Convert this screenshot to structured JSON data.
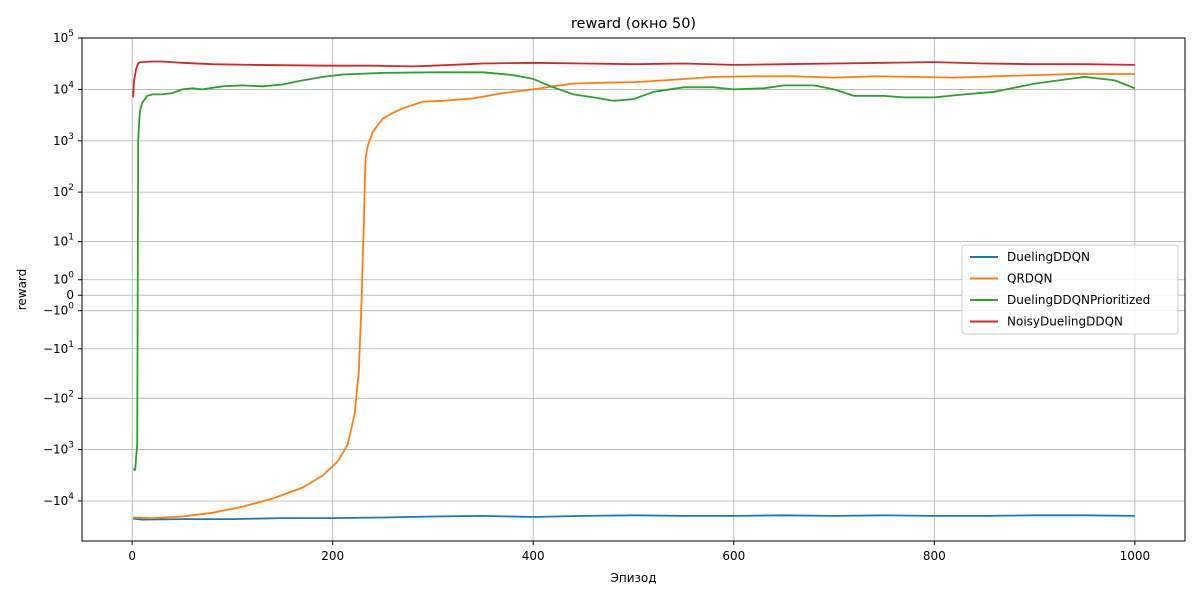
{
  "chart_data": {
    "type": "line",
    "title": "reward (окно 50)",
    "xlabel": "Эпизод",
    "ylabel": "reward",
    "yscale": "symlog",
    "xlim": [
      -50,
      1050
    ],
    "ylim": [
      -60000,
      100000
    ],
    "grid": true,
    "legend_position": "center-right",
    "x_ticks": [
      {
        "value": 0,
        "label": "0"
      },
      {
        "value": 200,
        "label": "200"
      },
      {
        "value": 400,
        "label": "400"
      },
      {
        "value": 600,
        "label": "600"
      },
      {
        "value": 800,
        "label": "800"
      },
      {
        "value": 1000,
        "label": "1000"
      }
    ],
    "y_ticks": [
      {
        "value": 100000,
        "base": "10",
        "exp": "5",
        "sign": ""
      },
      {
        "value": 10000,
        "base": "10",
        "exp": "4",
        "sign": ""
      },
      {
        "value": 1000,
        "base": "10",
        "exp": "3",
        "sign": ""
      },
      {
        "value": 100,
        "base": "10",
        "exp": "2",
        "sign": ""
      },
      {
        "value": 10,
        "base": "10",
        "exp": "1",
        "sign": ""
      },
      {
        "value": 1,
        "base": "10",
        "exp": "0",
        "sign": ""
      },
      {
        "value": 0,
        "base": "0",
        "exp": "",
        "sign": ""
      },
      {
        "value": -1,
        "base": "10",
        "exp": "0",
        "sign": "−"
      },
      {
        "value": -10,
        "base": "10",
        "exp": "1",
        "sign": "−"
      },
      {
        "value": -100,
        "base": "10",
        "exp": "2",
        "sign": "−"
      },
      {
        "value": -1000,
        "base": "10",
        "exp": "3",
        "sign": "−"
      },
      {
        "value": -10000,
        "base": "10",
        "exp": "4",
        "sign": "−"
      }
    ],
    "series": [
      {
        "name": "DuelingDDQN",
        "color": "#1f77b4",
        "x": [
          1,
          10,
          50,
          100,
          150,
          200,
          250,
          300,
          350,
          400,
          450,
          500,
          550,
          600,
          650,
          700,
          750,
          800,
          850,
          900,
          950,
          1000
        ],
        "y": [
          -22000,
          -23000,
          -22500,
          -22500,
          -21500,
          -21500,
          -21000,
          -20000,
          -19500,
          -20500,
          -19500,
          -19000,
          -19500,
          -19500,
          -19000,
          -19500,
          -19000,
          -19500,
          -19500,
          -19000,
          -19000,
          -19500
        ]
      },
      {
        "name": "QRDQN",
        "color": "#ff7f0e",
        "x": [
          1,
          20,
          50,
          80,
          110,
          140,
          170,
          190,
          205,
          215,
          222,
          226,
          229,
          230,
          231,
          232,
          233,
          235,
          240,
          250,
          260,
          270,
          290,
          310,
          340,
          370,
          400,
          420,
          440,
          470,
          500,
          530,
          560,
          580,
          620,
          660,
          700,
          740,
          780,
          820,
          860,
          900,
          940,
          1000
        ],
        "y": [
          -21000,
          -21500,
          -20000,
          -17000,
          -13000,
          -9000,
          -5500,
          -3200,
          -1700,
          -800,
          -200,
          -30,
          0,
          5,
          20,
          150,
          500,
          800,
          1500,
          2700,
          3500,
          4300,
          5800,
          6000,
          6700,
          8500,
          10000,
          11500,
          13000,
          13500,
          13800,
          15000,
          16500,
          17500,
          18000,
          18000,
          17000,
          18000,
          17500,
          17000,
          18000,
          19000,
          20000,
          20000
        ]
      },
      {
        "name": "DuelingDDQNPrioritized",
        "color": "#2ca02c",
        "x": [
          1,
          3,
          5,
          6,
          7,
          8,
          10,
          15,
          20,
          30,
          40,
          50,
          60,
          70,
          90,
          110,
          130,
          150,
          170,
          190,
          210,
          250,
          300,
          350,
          380,
          400,
          420,
          440,
          460,
          480,
          500,
          520,
          550,
          580,
          600,
          630,
          650,
          680,
          700,
          720,
          750,
          770,
          800,
          830,
          860,
          900,
          950,
          980,
          1000
        ],
        "y": [
          -2400,
          -2500,
          -800,
          1000,
          2500,
          4000,
          5500,
          7500,
          8000,
          8000,
          8500,
          10000,
          10500,
          10000,
          11500,
          12000,
          11500,
          12500,
          15000,
          17500,
          19500,
          21000,
          21500,
          21500,
          19000,
          16000,
          11000,
          8000,
          7000,
          6000,
          6500,
          9000,
          11000,
          11000,
          10000,
          10500,
          12000,
          12000,
          10000,
          7500,
          7500,
          7000,
          7000,
          8000,
          9000,
          13000,
          17500,
          15000,
          10500
        ]
      },
      {
        "name": "NoisyDuelingDDQN",
        "color": "#d62728",
        "x": [
          1,
          2,
          4,
          6,
          8,
          10,
          20,
          30,
          50,
          80,
          120,
          160,
          200,
          240,
          280,
          300,
          350,
          400,
          450,
          500,
          550,
          600,
          650,
          700,
          750,
          800,
          850,
          900,
          950,
          1000
        ],
        "y": [
          7000,
          15000,
          25000,
          32000,
          34000,
          34000,
          35000,
          35000,
          33000,
          31000,
          30000,
          29500,
          29000,
          29000,
          28000,
          29000,
          32000,
          33000,
          32000,
          31000,
          32000,
          30000,
          31000,
          32000,
          33000,
          34000,
          32000,
          31000,
          31000,
          30000
        ]
      }
    ]
  }
}
